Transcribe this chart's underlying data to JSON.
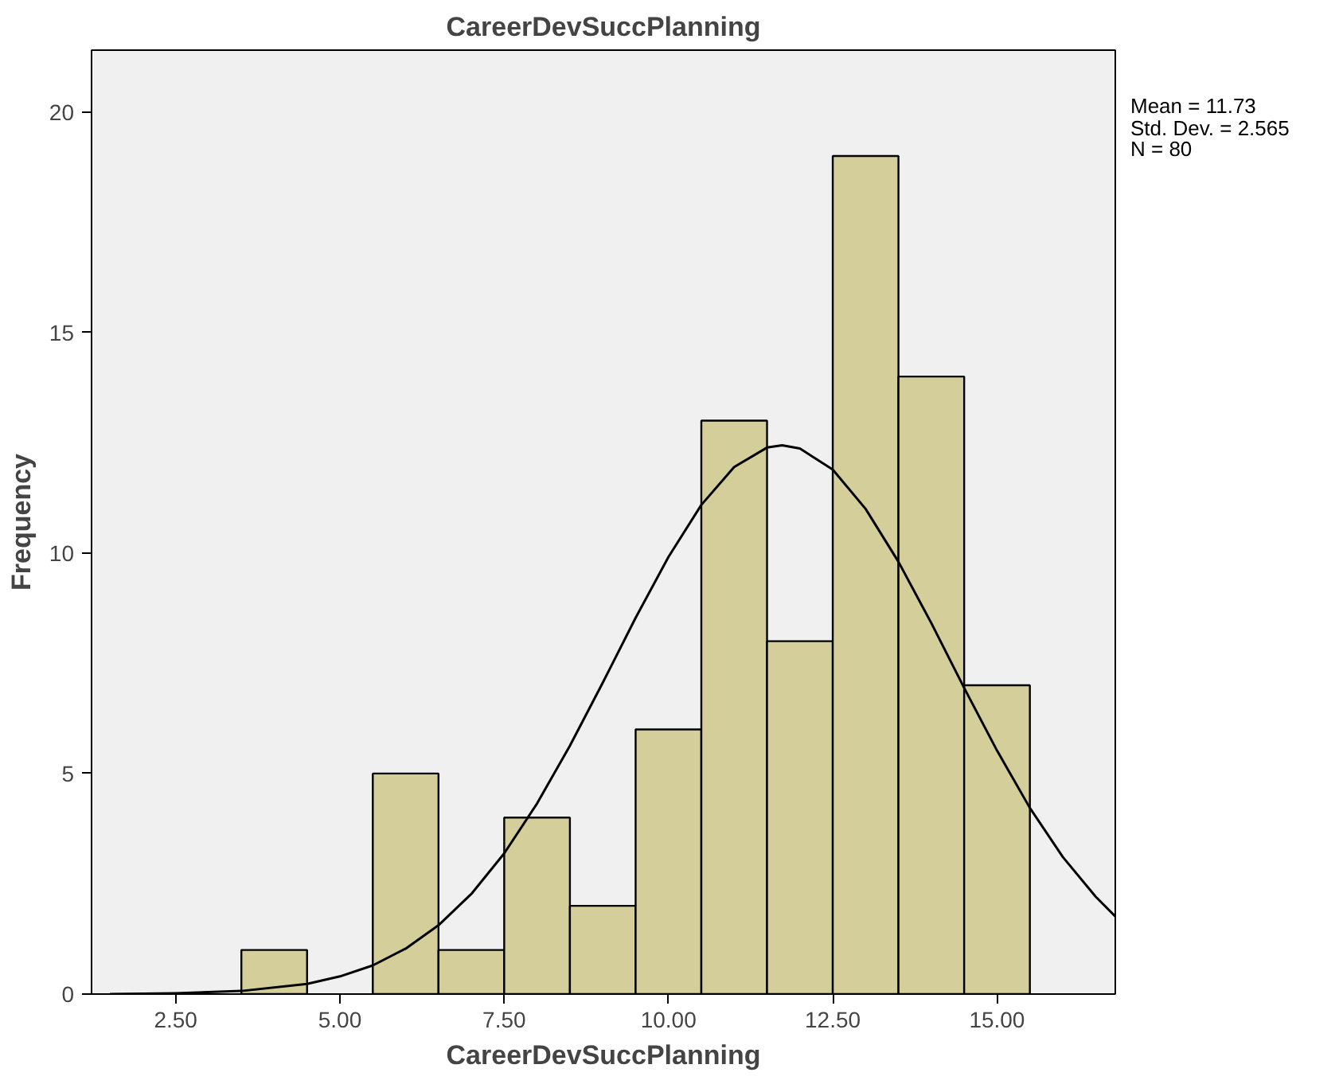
{
  "chart_data": {
    "type": "histogram",
    "title": "CareerDevSuccPlanning",
    "xlabel": "CareerDevSuccPlanning",
    "ylabel": "Frequency",
    "bins": [
      3.5,
      4.5,
      5.5,
      6.5,
      7.5,
      8.5,
      9.5,
      10.5,
      11.5,
      12.5,
      13.5,
      14.5,
      15.5
    ],
    "values": [
      1,
      0,
      5,
      1,
      4,
      2,
      6,
      13,
      8,
      19,
      14,
      7
    ],
    "color": "#d3ce9a",
    "series": [
      {
        "type": "line",
        "color": "#000000",
        "x": [
          1.5,
          2.5,
          3.5,
          4.5,
          5.0,
          5.5,
          6.0,
          6.5,
          7.0,
          7.5,
          8.0,
          8.5,
          9.0,
          9.5,
          10.0,
          10.5,
          11.0,
          11.5,
          11.73,
          12.0,
          12.5,
          13.0,
          13.5,
          14.0,
          14.5,
          15.0,
          15.5,
          16.0,
          16.5,
          16.8
        ],
        "values": [
          0.0,
          0.02,
          0.07,
          0.23,
          0.4,
          0.65,
          1.03,
          1.56,
          2.27,
          3.19,
          4.32,
          5.63,
          7.06,
          8.53,
          9.91,
          11.09,
          11.95,
          12.39,
          12.44,
          12.37,
          11.89,
          11.0,
          9.8,
          8.41,
          6.94,
          5.52,
          4.22,
          3.11,
          2.21,
          1.76
        ]
      }
    ],
    "xlim": [
      1.22,
      16.8
    ],
    "ylim": [
      0,
      21.4
    ],
    "xticks": [
      {
        "value": 2.5,
        "label": "2.50"
      },
      {
        "value": 5,
        "label": "5.00"
      },
      {
        "value": 7.5,
        "label": "7.50"
      },
      {
        "value": 10,
        "label": "10.00"
      },
      {
        "value": 12.5,
        "label": "12.50"
      },
      {
        "value": 15,
        "label": "15.00"
      }
    ],
    "yticks": [
      0,
      5,
      10,
      15,
      20
    ],
    "annotations": [
      "Mean = 11.73",
      "Std. Dev. = 2.565",
      "N = 80"
    ],
    "grid": false
  }
}
